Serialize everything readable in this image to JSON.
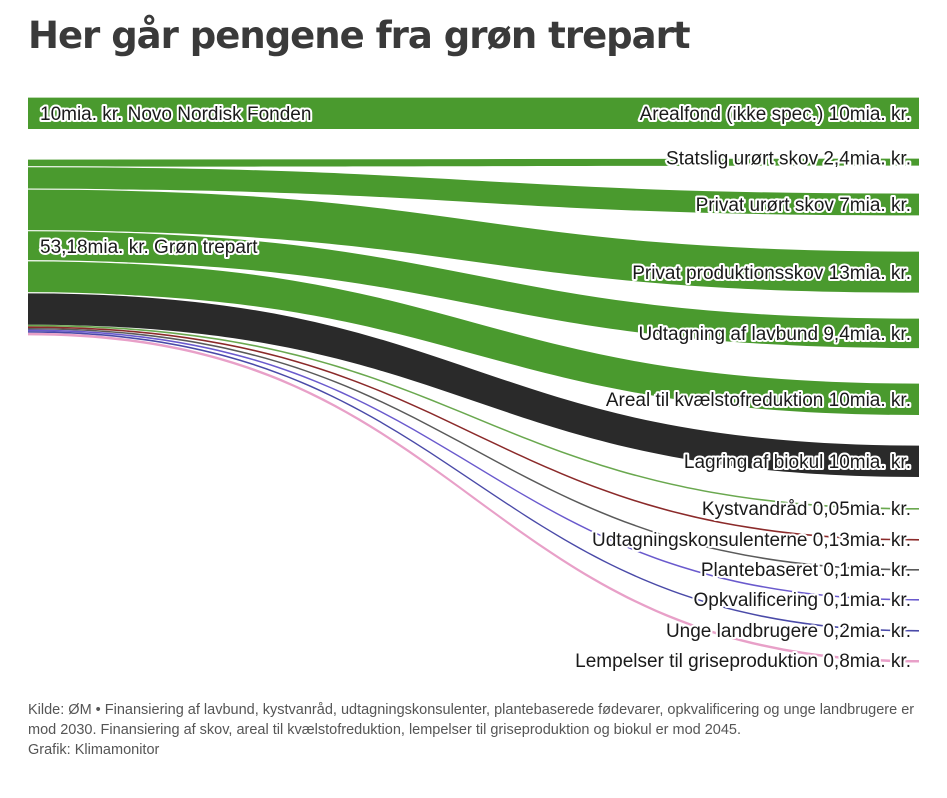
{
  "header": {
    "title": "Her går pengene fra grøn trepart"
  },
  "chart_data": {
    "type": "sankey",
    "title": "Her går pengene fra grøn trepart",
    "sources": [
      {
        "label": "10mia. kr. Novo Nordisk Fonden",
        "value": 10
      },
      {
        "label": "53,18mia. kr. Grøn trepart",
        "value": 53.18
      }
    ],
    "targets": [
      {
        "label": "Arealfond (ikke spec.) 10mia. kr.",
        "value": 10,
        "from": 0,
        "color": "#4a9a2e"
      },
      {
        "label": "Statslig urørt skov 2,4mia. kr.",
        "value": 2.4,
        "from": 1,
        "color": "#4a9a2e"
      },
      {
        "label": "Privat urørt skov 7mia. kr.",
        "value": 7,
        "from": 1,
        "color": "#4a9a2e"
      },
      {
        "label": "Privat produktionsskov 13mia. kr.",
        "value": 13,
        "from": 1,
        "color": "#4a9a2e"
      },
      {
        "label": "Udtagning af lavbund 9,4mia. kr.",
        "value": 9.4,
        "from": 1,
        "color": "#4a9a2e"
      },
      {
        "label": "Areal til kvælstofreduktion 10mia. kr.",
        "value": 10,
        "from": 1,
        "color": "#4a9a2e"
      },
      {
        "label": "Lagring af biokul 10mia. kr.",
        "value": 10,
        "from": 1,
        "color": "#2a2a2a"
      },
      {
        "label": "Kystvandråd 0,05mia. kr.",
        "value": 0.05,
        "from": 1,
        "color": "#6aa84f"
      },
      {
        "label": "Udtagningskonsulenterne 0,13mia. kr.",
        "value": 0.13,
        "from": 1,
        "color": "#8b2a2a"
      },
      {
        "label": "Plantebaseret 0,1mia. kr.",
        "value": 0.1,
        "from": 1,
        "color": "#5a5a5a"
      },
      {
        "label": "Opkvalificering 0,1mia. kr.",
        "value": 0.1,
        "from": 1,
        "color": "#6a5acd"
      },
      {
        "label": "Unge landbrugere 0,2mia. kr.",
        "value": 0.2,
        "from": 1,
        "color": "#4a4aa8"
      },
      {
        "label": "Lempelser til griseproduktion 0,8mia. kr.",
        "value": 0.8,
        "from": 1,
        "color": "#e8a0c8"
      }
    ]
  },
  "footer": {
    "source": "Kilde: ØM • Finansiering af lavbund, kystvanråd, udtagningskonsulenter, plantebaserede fødevarer, opkvalificering og unge landbrugere er mod 2030. Finansiering af skov, areal til kvælstofreduktion, lempelser til griseproduktion og biokul er mod 2045.",
    "credit": "Grafik: Klimamonitor"
  }
}
